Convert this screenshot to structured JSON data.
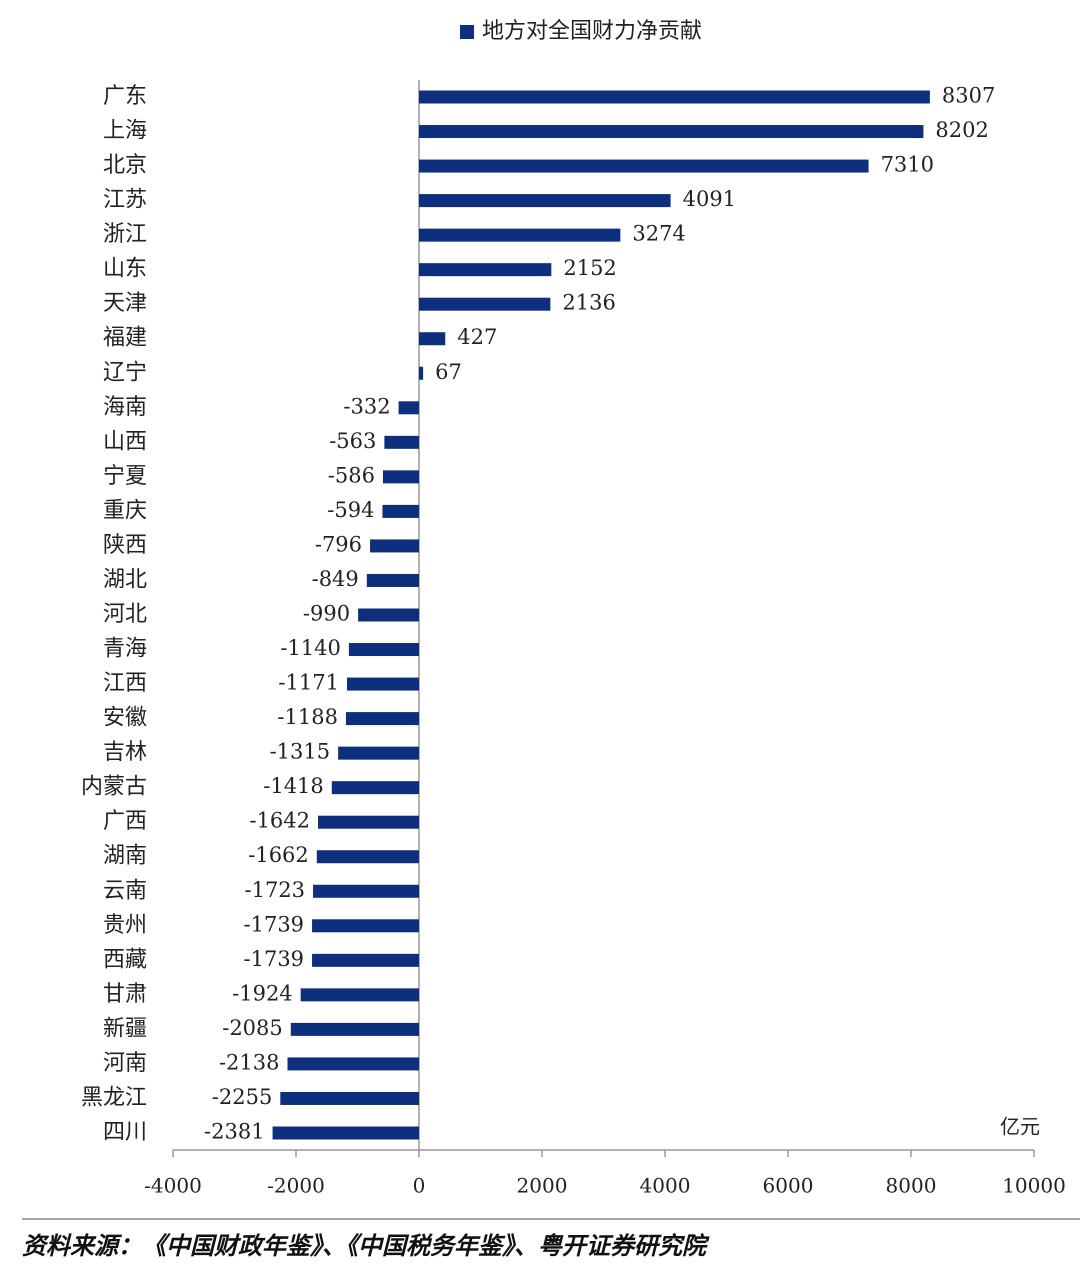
{
  "chart_data": {
    "type": "bar",
    "orientation": "horizontal",
    "categories": [
      "广东",
      "上海",
      "北京",
      "江苏",
      "浙江",
      "山东",
      "天津",
      "福建",
      "辽宁",
      "海南",
      "山西",
      "宁夏",
      "重庆",
      "陕西",
      "湖北",
      "河北",
      "青海",
      "江西",
      "安徽",
      "吉林",
      "内蒙古",
      "广西",
      "湖南",
      "云南",
      "贵州",
      "西藏",
      "甘肃",
      "新疆",
      "河南",
      "黑龙江",
      "四川"
    ],
    "series": [
      {
        "name": "地方对全国财力净贡献",
        "color": "#0d2f7e",
        "values": [
          8307,
          8202,
          7310,
          4091,
          3274,
          2152,
          2136,
          427,
          67,
          -332,
          -563,
          -586,
          -594,
          -796,
          -849,
          -990,
          -1140,
          -1171,
          -1188,
          -1315,
          -1418,
          -1642,
          -1662,
          -1723,
          -1739,
          -1739,
          -1924,
          -2085,
          -2138,
          -2255,
          -2381
        ]
      }
    ],
    "xlim": [
      -4000,
      10000
    ],
    "xticks": [
      -4000,
      -2000,
      0,
      2000,
      4000,
      6000,
      8000,
      10000
    ],
    "x_label": "亿元",
    "legend": "top",
    "grid": false,
    "source": "资料来源：《中国财政年鉴》、《中国税务年鉴》、粤开证券研究院"
  }
}
